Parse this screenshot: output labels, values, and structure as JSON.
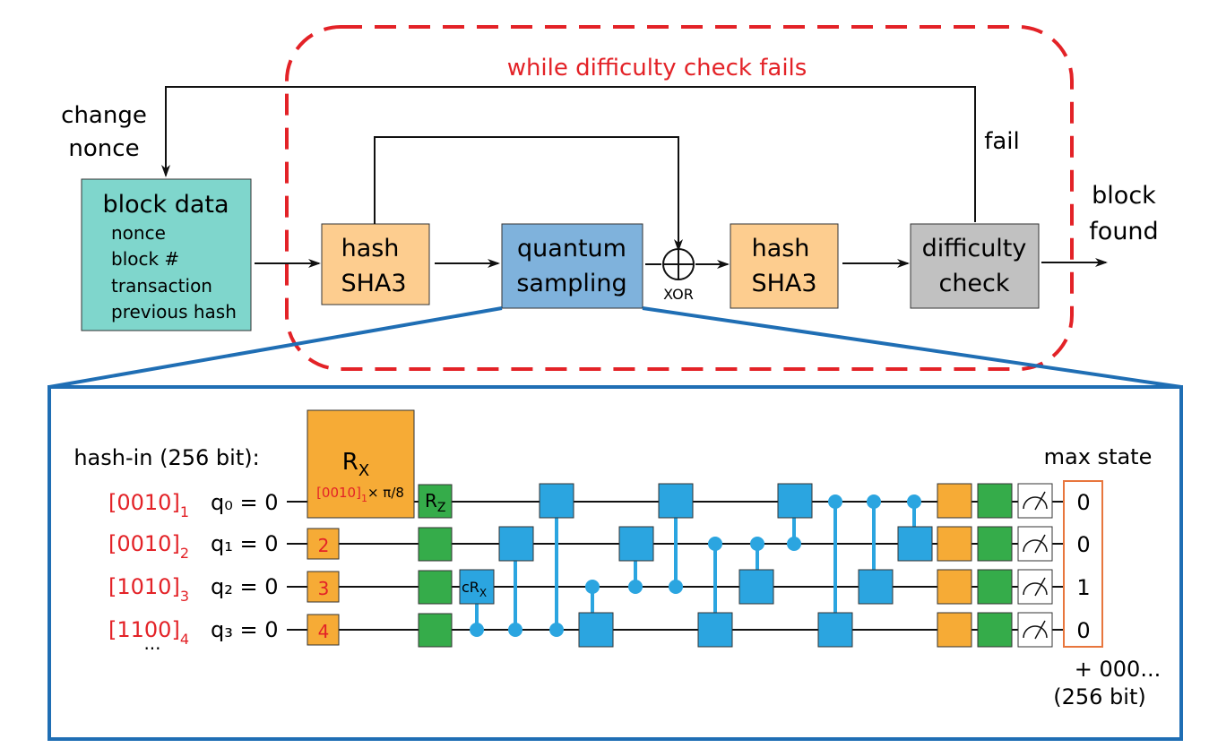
{
  "loop": {
    "label": "while difficulty check fails",
    "change_nonce_line1": "change",
    "change_nonce_line2": "nonce",
    "fail_label": "fail"
  },
  "block_data": {
    "title": "block data",
    "items": [
      "nonce",
      "block #",
      "transaction",
      "previous hash"
    ]
  },
  "hash1": {
    "line1": "hash",
    "line2": "SHA3"
  },
  "quantum": {
    "line1": "quantum",
    "line2": "sampling"
  },
  "xor_label": "XOR",
  "hash2": {
    "line1": "hash",
    "line2": "SHA3"
  },
  "difficulty": {
    "line1": "difficulty",
    "line2": "check"
  },
  "block_found": {
    "line1": "block",
    "line2": "found"
  },
  "circuit": {
    "hash_in_label": "hash-in (256 bit):",
    "hash_in_values": [
      "[0010]",
      "[0010]",
      "[1010]",
      "[1100]"
    ],
    "hash_in_subscripts": [
      "1",
      "2",
      "3",
      "4"
    ],
    "ellipsis": "...",
    "qubits": [
      "q₀ = 0",
      "q₁ = 0",
      "q₂ = 0",
      "q₃ = 0"
    ],
    "rx_label": "R",
    "rx_sub": "X",
    "rx_param_value": "[0010]",
    "rx_param_sub": "1",
    "rx_param_rest": "× π/8",
    "rz_label": "R",
    "rz_sub": "Z",
    "crx_label": "cR",
    "crx_sub": "X",
    "param_boxes": [
      "2",
      "3",
      "4"
    ],
    "max_state_label": "max state",
    "max_state_values": [
      "0",
      "0",
      "1",
      "0"
    ],
    "suffix_line1": "+ 000...",
    "suffix_line2": "(256 bit)"
  },
  "colors": {
    "loop_red": "#e32227",
    "block_data": "#7fd6cc",
    "hash": "#fdcd8f",
    "quantum": "#7fb2dc",
    "difficulty": "#c1c1c1",
    "frame_blue": "#1f6eb4",
    "gate_orange": "#f6ab36",
    "gate_green": "#35ac4a",
    "gate_blue": "#2ba5e0",
    "highlight_red": "#e32227",
    "max_state_border": "#e8763d"
  }
}
